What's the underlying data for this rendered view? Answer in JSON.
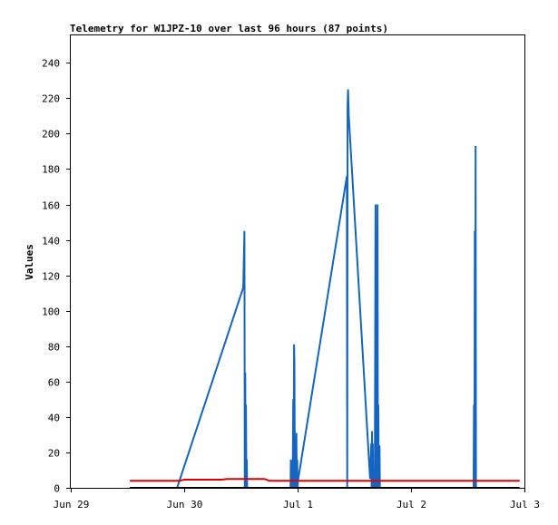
{
  "chart_data": {
    "type": "line",
    "title": "Telemetry for W1JPZ-10 over last 96 hours (87 points)",
    "ylabel": "Values",
    "xlabel": "",
    "x_ticks": [
      "Jun 29",
      "Jun 30",
      "Jul 1",
      "Jul 2",
      "Jul 3"
    ],
    "x_tick_dates": [
      "Jun 29 00:00",
      "Jun 30 00:00",
      "Jul 1 00:00",
      "Jul 2 00:00",
      "Jul 3 00:00"
    ],
    "xlim": [
      "Jun 29 00:00",
      "Jul 3 00:00"
    ],
    "ylim": [
      0,
      256
    ],
    "y_ticks": [
      0,
      20,
      40,
      60,
      80,
      100,
      120,
      140,
      160,
      180,
      200,
      220,
      240
    ],
    "grid": false,
    "legend": "none",
    "series": [
      {
        "color": "#1565c0",
        "points": [
          [
            "Jun 29 22:30",
            0
          ],
          [
            "Jun 30 12:30",
            113
          ],
          [
            "Jun 30 12:45",
            145
          ],
          [
            "Jun 30 12:50",
            0
          ],
          [
            "Jun 30 12:55",
            65
          ],
          [
            "Jun 30 13:00",
            0
          ],
          [
            "Jun 30 13:05",
            47
          ],
          [
            "Jun 30 13:10",
            0
          ],
          [
            "Jun 30 13:15",
            16
          ],
          [
            "Jun 30 13:20",
            0
          ],
          [
            "Jun 30 22:30",
            0
          ],
          [
            "Jun 30 22:35",
            16
          ],
          [
            "Jun 30 22:45",
            0
          ],
          [
            "Jun 30 23:00",
            16
          ],
          [
            "Jun 30 23:05",
            50
          ],
          [
            "Jun 30 23:10",
            0
          ],
          [
            "Jun 30 23:15",
            81
          ],
          [
            "Jun 30 23:20",
            70
          ],
          [
            "Jun 30 23:25",
            0
          ],
          [
            "Jun 30 23:30",
            16
          ],
          [
            "Jun 30 23:35",
            0
          ],
          [
            "Jun 30 23:45",
            31
          ],
          [
            "Jun 30 23:50",
            0
          ],
          [
            "Jun 30 23:55",
            16
          ],
          [
            "Jul 1 00:00",
            0
          ],
          [
            "Jul 1 00:05",
            4
          ],
          [
            "Jul 1 10:25",
            176
          ],
          [
            "Jul 1 10:30",
            0
          ],
          [
            "Jul 1 10:35",
            216
          ],
          [
            "Jul 1 10:40",
            225
          ],
          [
            "Jul 1 10:50",
            210
          ],
          [
            "Jul 1 15:20",
            5
          ],
          [
            "Jul 1 15:35",
            25
          ],
          [
            "Jul 1 15:40",
            0
          ],
          [
            "Jul 1 15:45",
            32
          ],
          [
            "Jul 1 15:50",
            0
          ],
          [
            "Jul 1 15:55",
            25
          ],
          [
            "Jul 1 16:00",
            0
          ],
          [
            "Jul 1 16:20",
            0
          ],
          [
            "Jul 1 16:30",
            160
          ],
          [
            "Jul 1 16:35",
            0
          ],
          [
            "Jul 1 16:40",
            97
          ],
          [
            "Jul 1 16:45",
            0
          ],
          [
            "Jul 1 16:55",
            160
          ],
          [
            "Jul 1 17:00",
            0
          ],
          [
            "Jul 1 17:05",
            47
          ],
          [
            "Jul 1 17:10",
            0
          ],
          [
            "Jul 1 17:20",
            24
          ],
          [
            "Jul 1 17:25",
            0
          ],
          [
            "Jul 2 13:15",
            0
          ],
          [
            "Jul 2 13:20",
            47
          ],
          [
            "Jul 2 13:25",
            0
          ],
          [
            "Jul 2 13:30",
            145
          ],
          [
            "Jul 2 13:35",
            0
          ],
          [
            "Jul 2 13:40",
            193
          ],
          [
            "Jul 2 13:45",
            0
          ]
        ]
      },
      {
        "color": "#dd0000",
        "points": [
          [
            "Jun 29 12:30",
            4
          ],
          [
            "Jun 29 23:00",
            4
          ],
          [
            "Jun 30 00:00",
            4.6
          ],
          [
            "Jun 30 08:00",
            4.6
          ],
          [
            "Jun 30 09:00",
            5
          ],
          [
            "Jun 30 17:00",
            5
          ],
          [
            "Jun 30 18:00",
            4
          ],
          [
            "Jul 2 23:00",
            4
          ]
        ]
      },
      {
        "color": "#000000",
        "points": [
          [
            "Jun 29 12:30",
            0
          ],
          [
            "Jul 2 23:00",
            0
          ]
        ]
      }
    ]
  }
}
